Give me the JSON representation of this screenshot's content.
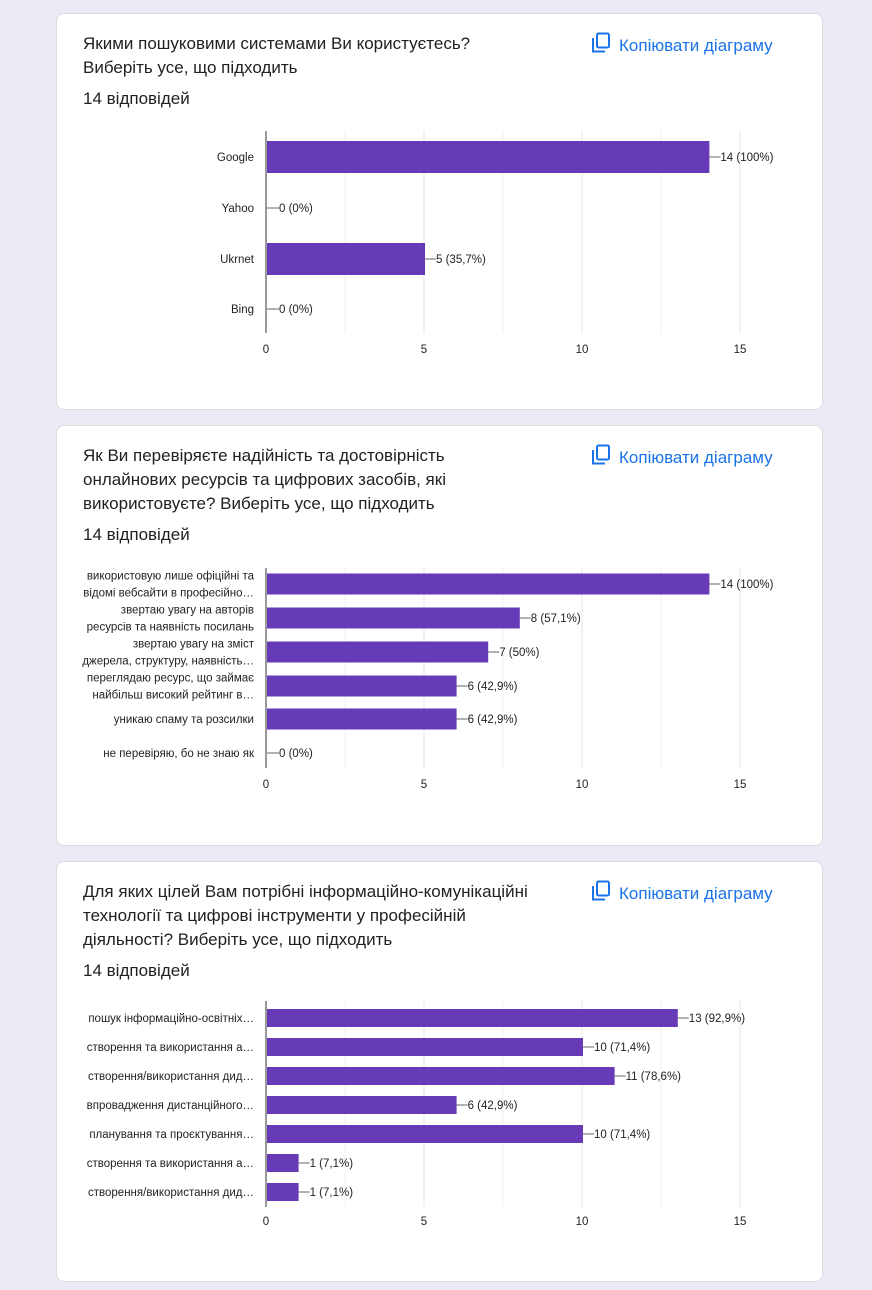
{
  "copy_label": "Копіювати діаграму",
  "colors": {
    "bar": "#673ab7",
    "link": "#1a73e8",
    "background": "#ede9f5"
  },
  "chart_data": [
    {
      "type": "bar",
      "orientation": "horizontal",
      "title": "Якими пошуковими системами Ви користуєтесь? Виберіть усе, що підходить",
      "responses": "14 відповідей",
      "categories": [
        [
          "Google"
        ],
        [
          "Yahoo"
        ],
        [
          "Ukrnet"
        ],
        [
          "Bing"
        ]
      ],
      "values": [
        14,
        0,
        5,
        0
      ],
      "data_labels": [
        "14 (100%)",
        "0 (0%)",
        "5 (35,7%)",
        "0 (0%)"
      ],
      "xlim": [
        0,
        15
      ],
      "xticks": [
        "0",
        "5",
        "10",
        "15"
      ],
      "grid": true
    },
    {
      "type": "bar",
      "orientation": "horizontal",
      "title": "Як Ви перевіряєте надійність та достовірність онлайнових ресурсів та цифрових засобів, які використовуєте? Виберіть усе, що підходить",
      "responses": "14 відповідей",
      "categories": [
        [
          "використовую лише офіційні та",
          "відомі вебсайти в професійно…"
        ],
        [
          "звертаю увагу на авторів",
          "ресурсів та наявність посилань"
        ],
        [
          "звертаю увагу на зміст",
          "джерела, структуру, наявність…"
        ],
        [
          "переглядаю ресурс, що займає",
          "найбільш високий рейтинг в…"
        ],
        [
          "уникаю спаму та розсилки"
        ],
        [
          "не перевіряю, бо не знаю як"
        ]
      ],
      "values": [
        14,
        8,
        7,
        6,
        6,
        0
      ],
      "data_labels": [
        "14 (100%)",
        "8 (57,1%)",
        "7 (50%)",
        "6 (42,9%)",
        "6 (42,9%)",
        "0 (0%)"
      ],
      "xlim": [
        0,
        15
      ],
      "xticks": [
        "0",
        "5",
        "10",
        "15"
      ],
      "grid": true
    },
    {
      "type": "bar",
      "orientation": "horizontal",
      "title": "Для яких цілей Вам потрібні інформаційно-комунікаційні технології та цифрові інструменти у професійній діяльності? Виберіть усе, що підходить",
      "responses": "14 відповідей",
      "categories": [
        [
          "пошук інформаційно-освітніх…"
        ],
        [
          "створення та використання а…"
        ],
        [
          "створення/використання дид…"
        ],
        [
          "впровадження дистанційного…"
        ],
        [
          "планування та проєктування…"
        ],
        [
          "створення та використання а…"
        ],
        [
          "створення/використання дид…"
        ]
      ],
      "values": [
        13,
        10,
        11,
        6,
        10,
        1,
        1
      ],
      "data_labels": [
        "13 (92,9%)",
        "10 (71,4%)",
        "11 (78,6%)",
        "6 (42,9%)",
        "10 (71,4%)",
        "1 (7,1%)",
        "1 (7,1%)"
      ],
      "xlim": [
        0,
        15
      ],
      "xticks": [
        "0",
        "5",
        "10",
        "15"
      ],
      "grid": true
    }
  ]
}
